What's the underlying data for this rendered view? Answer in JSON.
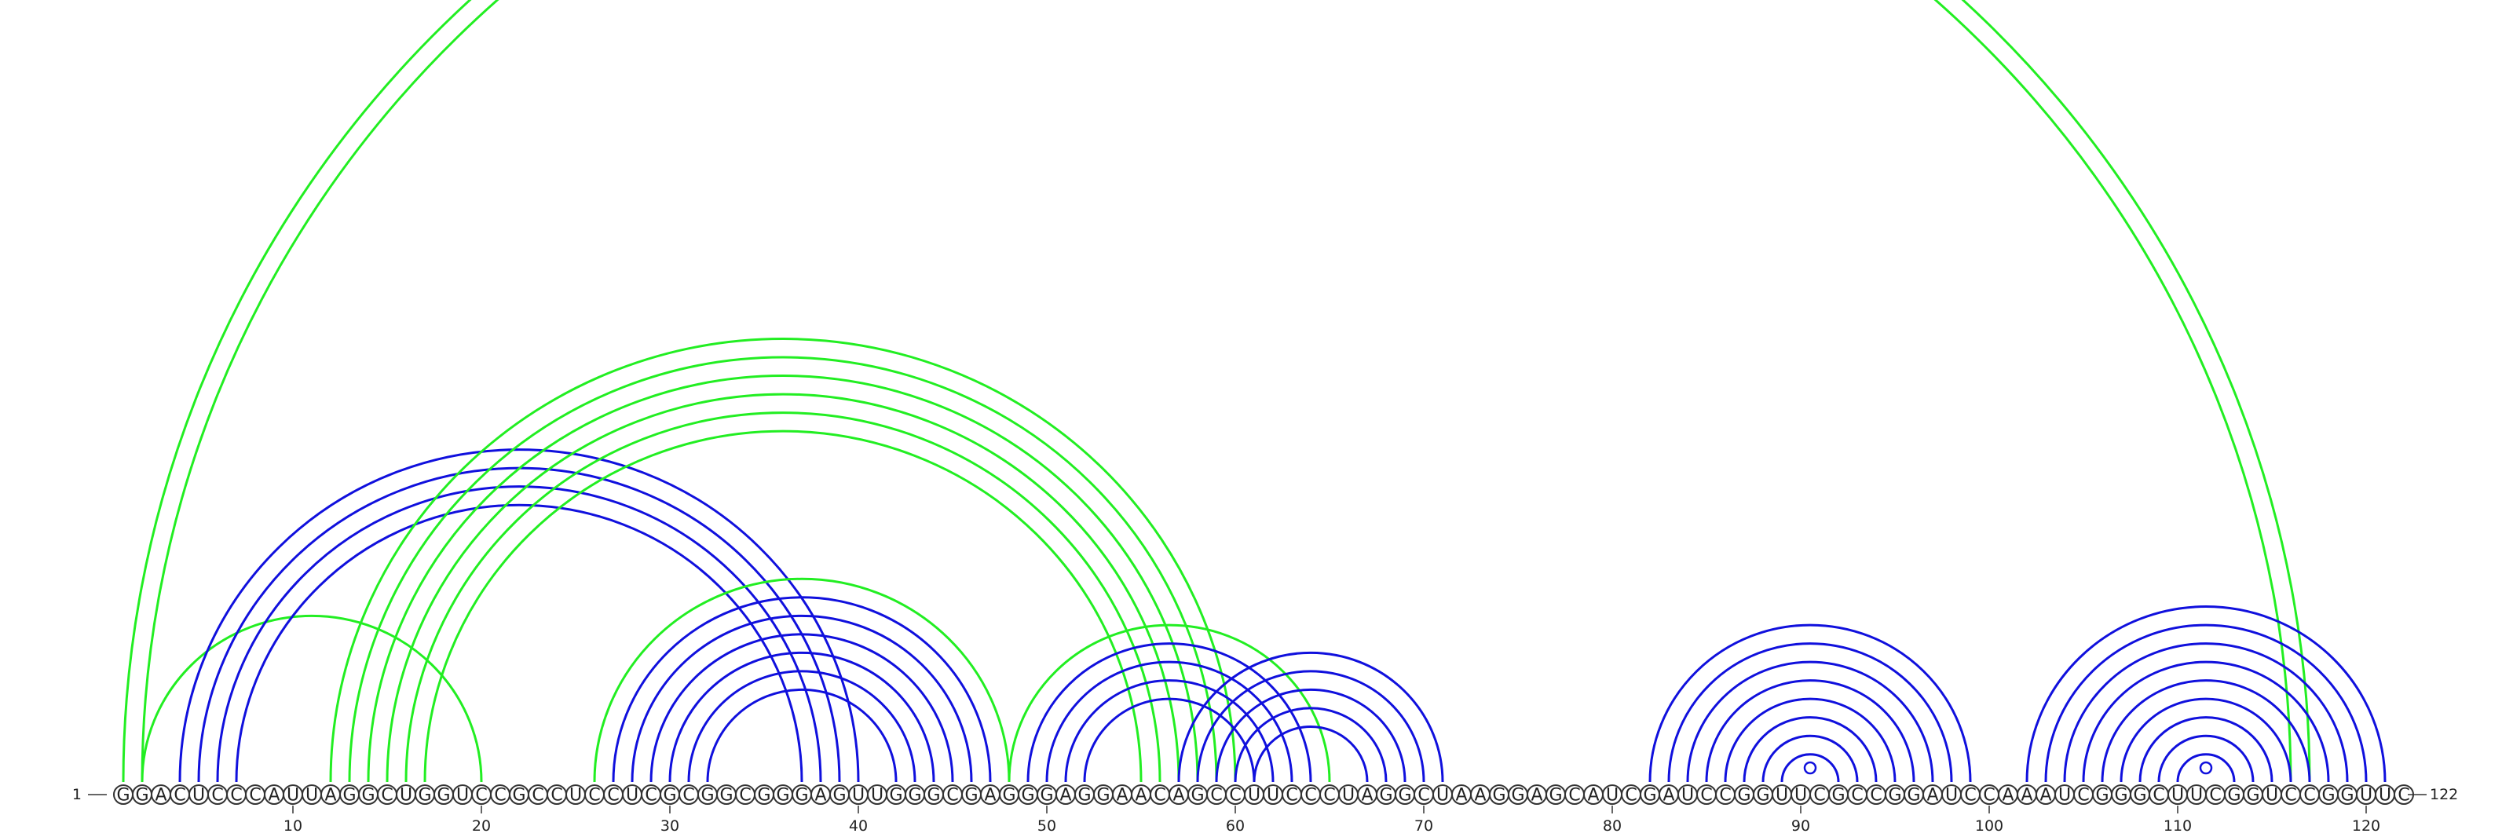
{
  "diagram": {
    "sequence": "GGACUCCCAUUAGGCUGGUCCGCCUCCUCGCGGCGGGAGUUGGGCGAGGGAGGAACAGCCUUCCCUAGGCUAAGGAGCAUCGAUCCGGUUCGCCGGAUCCAAAUCGGGCUUCGGUCCGGUUC",
    "start_label": "1",
    "end_label": "122",
    "tick_labels": [
      "10",
      "20",
      "30",
      "40",
      "50",
      "60",
      "70",
      "80",
      "90",
      "100",
      "110",
      "120"
    ],
    "tick_positions": [
      10,
      20,
      30,
      40,
      50,
      60,
      70,
      80,
      90,
      100,
      110,
      120
    ],
    "colors": {
      "blue": "#1010dd",
      "green": "#22ee22"
    },
    "arcs": [
      {
        "i": 1,
        "j": 117,
        "color": "green"
      },
      {
        "i": 2,
        "j": 116,
        "color": "green"
      },
      {
        "i": 2,
        "j": 20,
        "color": "green"
      },
      {
        "i": 4,
        "j": 40,
        "color": "blue"
      },
      {
        "i": 5,
        "j": 39,
        "color": "blue"
      },
      {
        "i": 6,
        "j": 38,
        "color": "blue"
      },
      {
        "i": 7,
        "j": 37,
        "color": "blue"
      },
      {
        "i": 12,
        "j": 60,
        "color": "green"
      },
      {
        "i": 13,
        "j": 59,
        "color": "green"
      },
      {
        "i": 14,
        "j": 58,
        "color": "green"
      },
      {
        "i": 15,
        "j": 57,
        "color": "green"
      },
      {
        "i": 16,
        "j": 56,
        "color": "green"
      },
      {
        "i": 17,
        "j": 55,
        "color": "green"
      },
      {
        "i": 26,
        "j": 48,
        "color": "green"
      },
      {
        "i": 27,
        "j": 47,
        "color": "blue"
      },
      {
        "i": 28,
        "j": 46,
        "color": "blue"
      },
      {
        "i": 29,
        "j": 45,
        "color": "blue"
      },
      {
        "i": 30,
        "j": 44,
        "color": "blue"
      },
      {
        "i": 31,
        "j": 43,
        "color": "blue"
      },
      {
        "i": 32,
        "j": 42,
        "color": "blue"
      },
      {
        "i": 48,
        "j": 65,
        "color": "green"
      },
      {
        "i": 49,
        "j": 64,
        "color": "blue"
      },
      {
        "i": 50,
        "j": 63,
        "color": "blue"
      },
      {
        "i": 51,
        "j": 62,
        "color": "blue"
      },
      {
        "i": 52,
        "j": 61,
        "color": "blue"
      },
      {
        "i": 57,
        "j": 71,
        "color": "blue"
      },
      {
        "i": 58,
        "j": 70,
        "color": "blue"
      },
      {
        "i": 59,
        "j": 69,
        "color": "blue"
      },
      {
        "i": 60,
        "j": 68,
        "color": "blue"
      },
      {
        "i": 61,
        "j": 67,
        "color": "blue"
      },
      {
        "i": 82,
        "j": 99,
        "color": "blue"
      },
      {
        "i": 83,
        "j": 98,
        "color": "blue"
      },
      {
        "i": 84,
        "j": 97,
        "color": "blue"
      },
      {
        "i": 85,
        "j": 96,
        "color": "blue"
      },
      {
        "i": 86,
        "j": 95,
        "color": "blue"
      },
      {
        "i": 87,
        "j": 94,
        "color": "blue"
      },
      {
        "i": 88,
        "j": 93,
        "color": "blue"
      },
      {
        "i": 89,
        "j": 92,
        "color": "blue"
      },
      {
        "i": 102,
        "j": 121,
        "color": "blue"
      },
      {
        "i": 103,
        "j": 120,
        "color": "blue"
      },
      {
        "i": 104,
        "j": 119,
        "color": "blue"
      },
      {
        "i": 105,
        "j": 118,
        "color": "blue"
      },
      {
        "i": 106,
        "j": 117,
        "color": "blue"
      },
      {
        "i": 107,
        "j": 116,
        "color": "blue"
      },
      {
        "i": 108,
        "j": 115,
        "color": "blue"
      },
      {
        "i": 109,
        "j": 114,
        "color": "blue"
      },
      {
        "i": 110,
        "j": 113,
        "color": "blue"
      }
    ],
    "marks": [
      {
        "i": 90,
        "j": 91,
        "color": "blue"
      },
      {
        "i": 111,
        "j": 112,
        "color": "blue"
      }
    ]
  }
}
